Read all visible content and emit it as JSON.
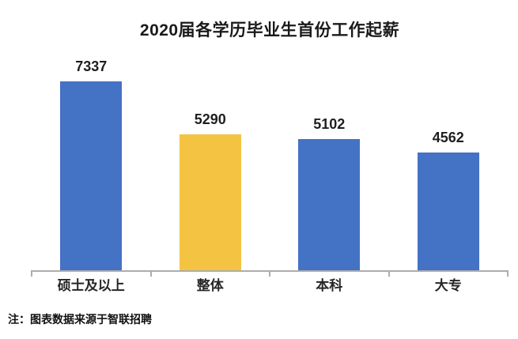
{
  "chart_data": {
    "type": "bar",
    "title": "2020届各学历毕业生首份工作起薪",
    "categories": [
      "硕士及以上",
      "整体",
      "本科",
      "大专"
    ],
    "values": [
      7337,
      5290,
      5102,
      4562
    ],
    "bar_colors": [
      "#4472C4",
      "#F5C342",
      "#4472C4",
      "#4472C4"
    ],
    "highlight_category": "整体",
    "xlabel": "",
    "ylabel": "",
    "ylim": [
      0,
      8000
    ],
    "grid": false,
    "legend": false,
    "data_labels": true,
    "axis_color": "#ADADAD",
    "source_note": "注：图表数据来源于智联招聘"
  }
}
